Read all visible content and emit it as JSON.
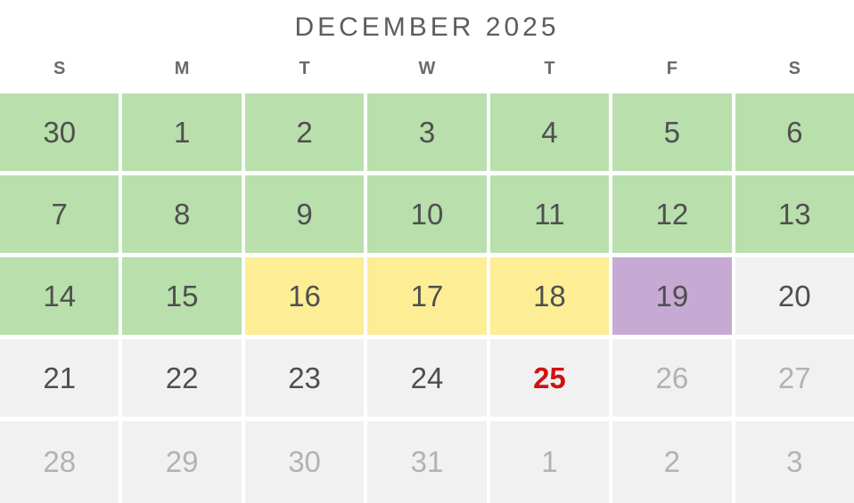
{
  "calendar": {
    "title": "DECEMBER 2025",
    "weekday_headers": [
      "S",
      "M",
      "T",
      "W",
      "T",
      "F",
      "S"
    ],
    "weeks": [
      {
        "days": [
          {
            "label": "30",
            "bg": "green",
            "tone": "dark"
          },
          {
            "label": "1",
            "bg": "green",
            "tone": "dark"
          },
          {
            "label": "2",
            "bg": "green",
            "tone": "dark"
          },
          {
            "label": "3",
            "bg": "green",
            "tone": "dark"
          },
          {
            "label": "4",
            "bg": "green",
            "tone": "dark"
          },
          {
            "label": "5",
            "bg": "green",
            "tone": "dark"
          },
          {
            "label": "6",
            "bg": "green",
            "tone": "dark"
          }
        ]
      },
      {
        "days": [
          {
            "label": "7",
            "bg": "green",
            "tone": "dark"
          },
          {
            "label": "8",
            "bg": "green",
            "tone": "dark"
          },
          {
            "label": "9",
            "bg": "green",
            "tone": "dark"
          },
          {
            "label": "10",
            "bg": "green",
            "tone": "dark"
          },
          {
            "label": "11",
            "bg": "green",
            "tone": "dark"
          },
          {
            "label": "12",
            "bg": "green",
            "tone": "dark"
          },
          {
            "label": "13",
            "bg": "green",
            "tone": "dark"
          }
        ]
      },
      {
        "days": [
          {
            "label": "14",
            "bg": "green",
            "tone": "dark"
          },
          {
            "label": "15",
            "bg": "green",
            "tone": "dark"
          },
          {
            "label": "16",
            "bg": "yellow",
            "tone": "dark"
          },
          {
            "label": "17",
            "bg": "yellow",
            "tone": "dark"
          },
          {
            "label": "18",
            "bg": "yellow",
            "tone": "dark"
          },
          {
            "label": "19",
            "bg": "purple",
            "tone": "dark"
          },
          {
            "label": "20",
            "bg": "gray",
            "tone": "dark"
          }
        ]
      },
      {
        "days": [
          {
            "label": "21",
            "bg": "gray",
            "tone": "dark"
          },
          {
            "label": "22",
            "bg": "gray",
            "tone": "dark"
          },
          {
            "label": "23",
            "bg": "gray",
            "tone": "dark"
          },
          {
            "label": "24",
            "bg": "gray",
            "tone": "dark"
          },
          {
            "label": "25",
            "bg": "gray",
            "tone": "red"
          },
          {
            "label": "26",
            "bg": "gray",
            "tone": "muted"
          },
          {
            "label": "27",
            "bg": "gray",
            "tone": "muted"
          }
        ]
      },
      {
        "days": [
          {
            "label": "28",
            "bg": "gray",
            "tone": "muted"
          },
          {
            "label": "29",
            "bg": "gray",
            "tone": "muted"
          },
          {
            "label": "30",
            "bg": "gray",
            "tone": "muted"
          },
          {
            "label": "31",
            "bg": "gray",
            "tone": "muted"
          },
          {
            "label": "1",
            "bg": "gray",
            "tone": "muted"
          },
          {
            "label": "2",
            "bg": "gray",
            "tone": "muted"
          },
          {
            "label": "3",
            "bg": "gray",
            "tone": "muted"
          }
        ]
      }
    ]
  },
  "colors": {
    "green": "#b8dfac",
    "yellow": "#fdee95",
    "purple": "#c6aad4",
    "gray": "#f1f1f1",
    "dark_text": "#4f4f4f",
    "muted_text": "#b2b2b2",
    "red_text": "#cf1212",
    "title_text": "#5d5d5d",
    "header_text": "#6a6a6a"
  }
}
